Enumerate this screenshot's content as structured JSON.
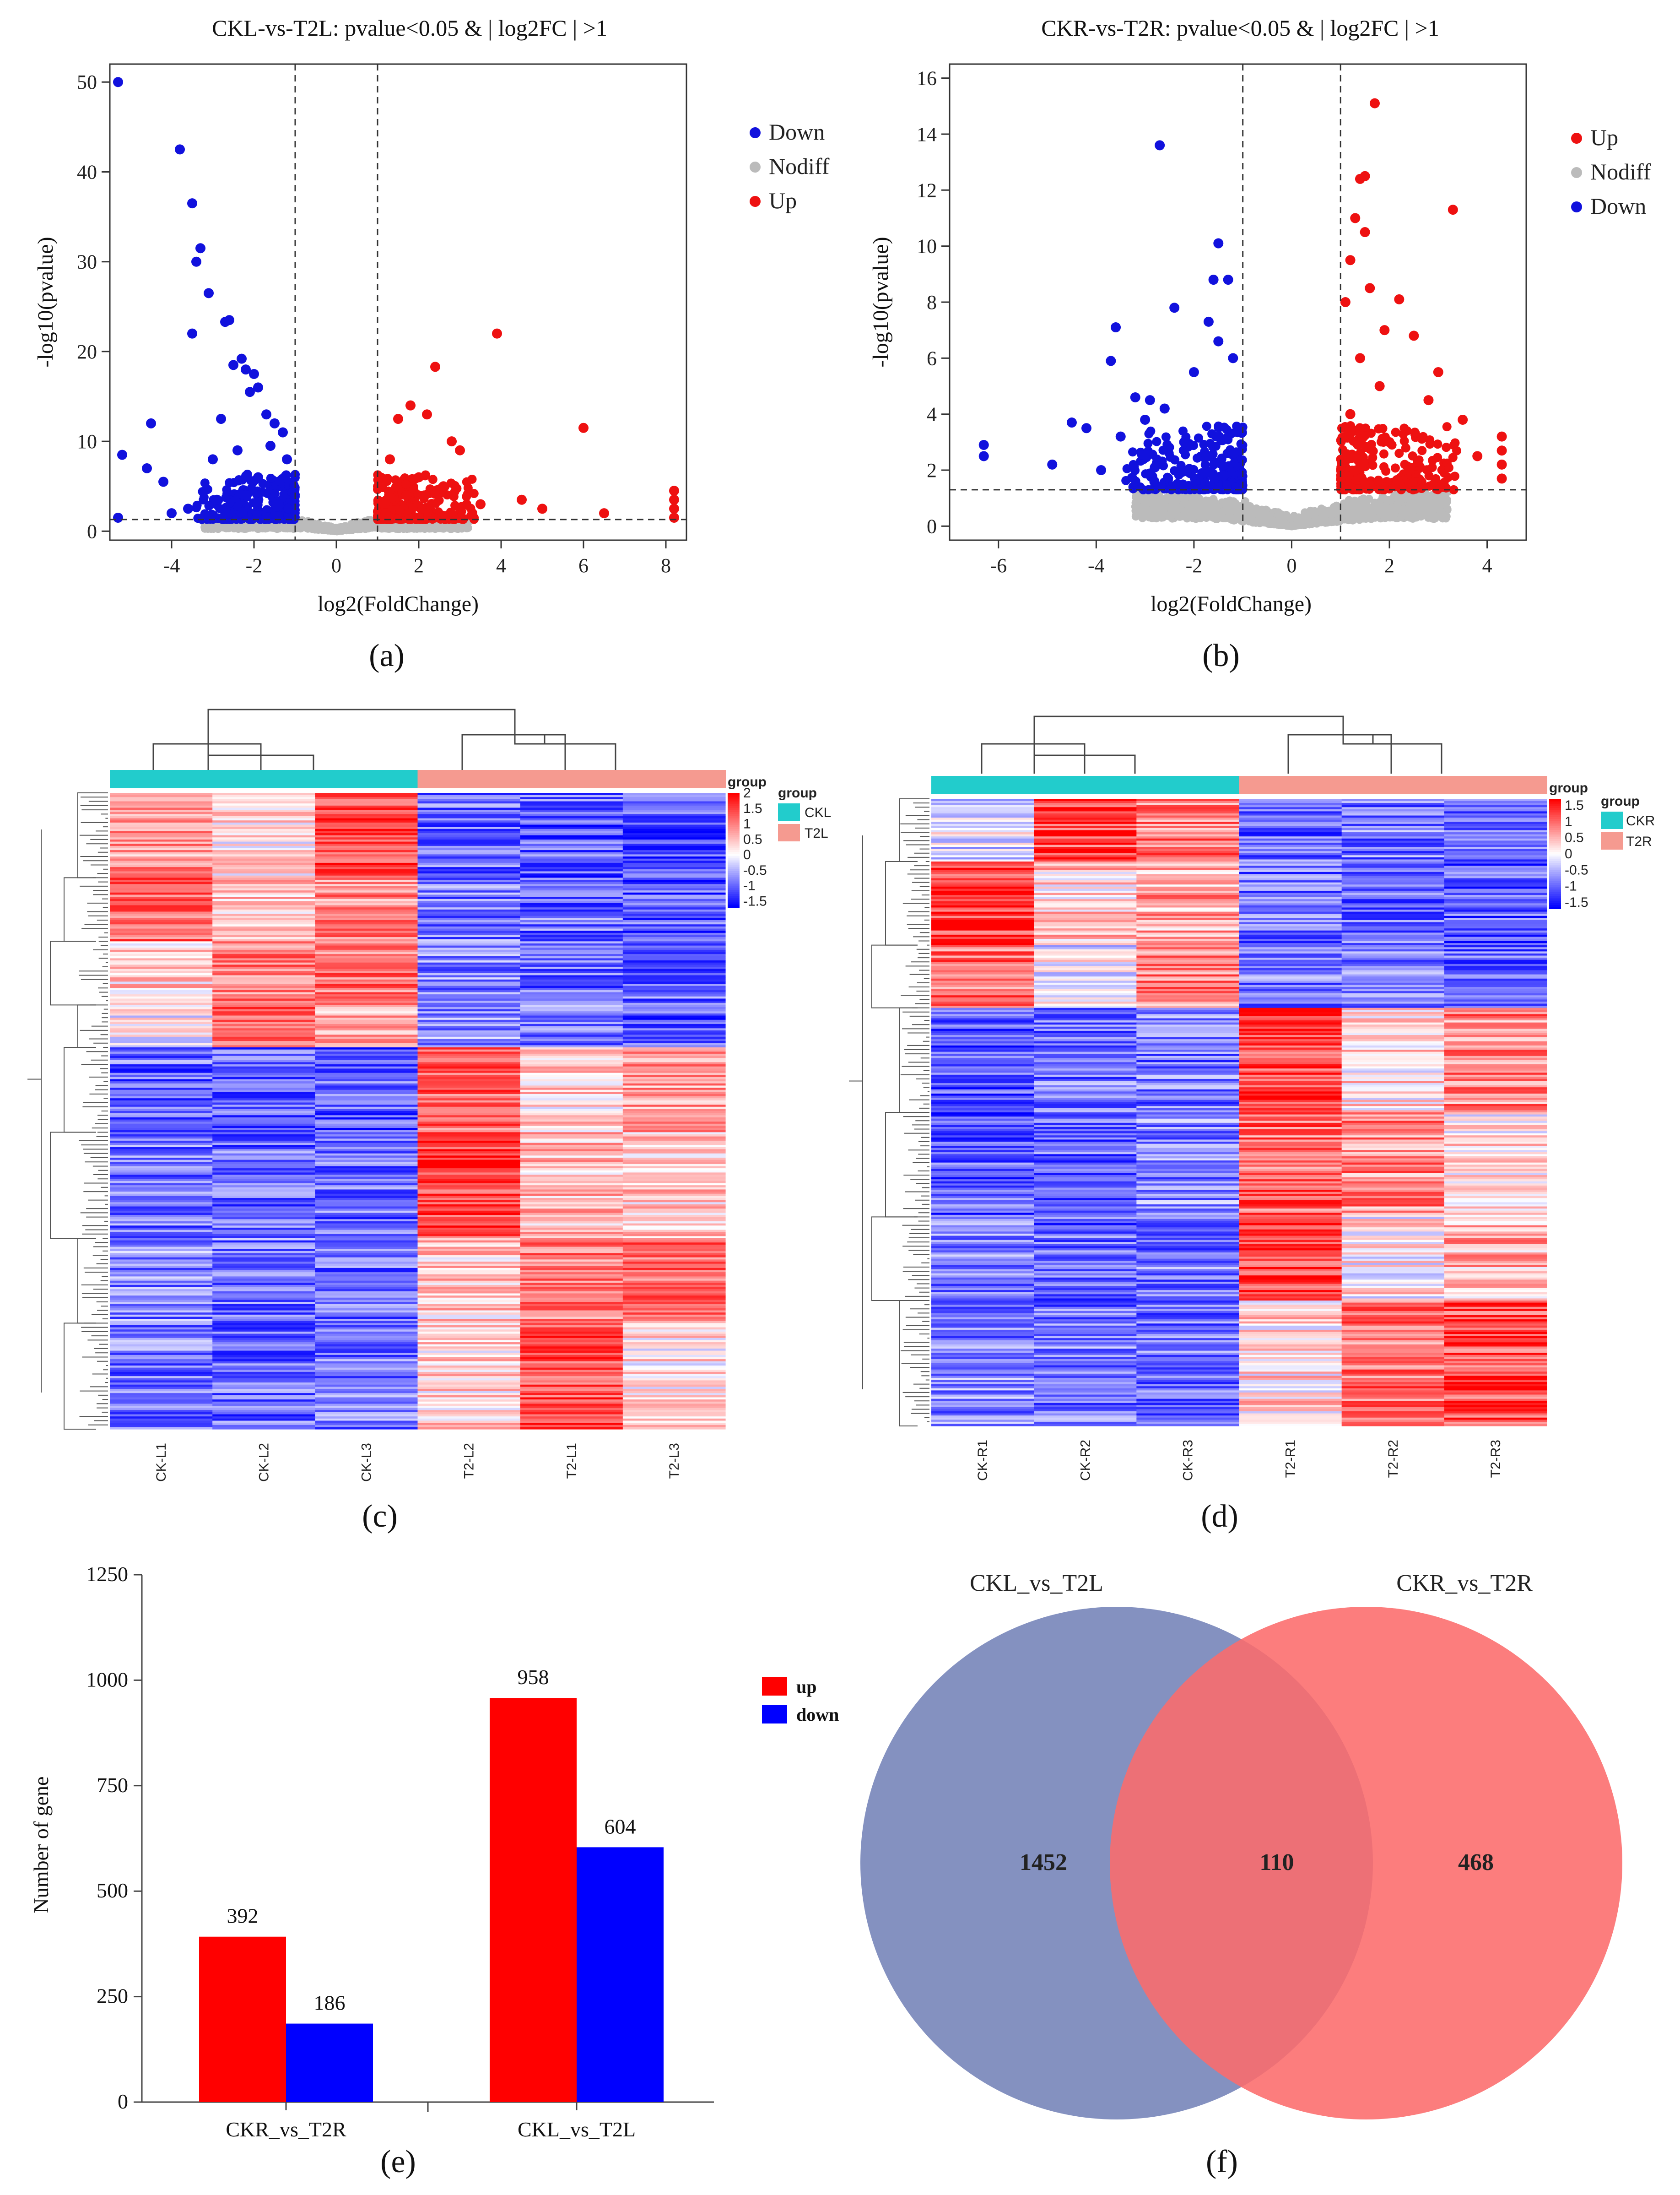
{
  "chart_data": [
    {
      "panel": "(a)",
      "type": "scatter",
      "title": "CKL-vs-T2L: pvalue<0.05 & | log2FC | >1",
      "xlabel": "log2(FoldChange)",
      "ylabel": "-log10(pvalue)",
      "xlim": [
        -5.5,
        8.5
      ],
      "ylim": [
        -1,
        52
      ],
      "xticks": [
        -4,
        -2,
        0,
        2,
        4,
        6,
        8
      ],
      "yticks": [
        0,
        10,
        20,
        30,
        40,
        50
      ],
      "thresholds": {
        "x": [
          -1,
          1
        ],
        "y": 1.3
      },
      "legend": [
        "Down",
        "Nodiff",
        "Up"
      ],
      "colors": {
        "Down": "#1111dd",
        "Nodiff": "#bbbbbb",
        "Up": "#ee1111"
      },
      "series": [
        {
          "name": "Down",
          "points": [
            [
              -5.3,
              50
            ],
            [
              -3.8,
              42.5
            ],
            [
              -3.5,
              36.5
            ],
            [
              -3.3,
              31.5
            ],
            [
              -3.4,
              30
            ],
            [
              -3.1,
              26.5
            ],
            [
              -2.6,
              23.5
            ],
            [
              -2.7,
              23.3
            ],
            [
              -3.5,
              22
            ],
            [
              -2.3,
              19.2
            ],
            [
              -2.5,
              18.5
            ],
            [
              -2.2,
              18
            ],
            [
              -2.0,
              17.5
            ],
            [
              -1.9,
              16
            ],
            [
              -2.1,
              15.5
            ],
            [
              -4.5,
              12
            ],
            [
              -2.8,
              12.5
            ],
            [
              -1.5,
              12
            ],
            [
              -1.7,
              13
            ],
            [
              -1.3,
              11
            ],
            [
              -5.2,
              8.5
            ],
            [
              -4.2,
              5.5
            ],
            [
              -4.6,
              7
            ],
            [
              -3.0,
              8
            ],
            [
              -2.4,
              9
            ],
            [
              -1.6,
              9.5
            ],
            [
              -1.2,
              8
            ],
            [
              -1.9,
              6
            ],
            [
              -2.2,
              4
            ],
            [
              -1.4,
              3
            ],
            [
              -3.6,
              2.5
            ],
            [
              -4.0,
              2
            ],
            [
              -5.3,
              1.5
            ],
            [
              -2.9,
              3.5
            ]
          ]
        },
        {
          "name": "Up",
          "points": [
            [
              3.9,
              22
            ],
            [
              2.4,
              18.3
            ],
            [
              1.8,
              14
            ],
            [
              2.2,
              13
            ],
            [
              1.5,
              12.5
            ],
            [
              2.8,
              10
            ],
            [
              6.0,
              11.5
            ],
            [
              3.0,
              9
            ],
            [
              1.3,
              8
            ],
            [
              2.0,
              6
            ],
            [
              1.7,
              4
            ],
            [
              4.5,
              3.5
            ],
            [
              5.0,
              2.5
            ],
            [
              3.5,
              3
            ],
            [
              8.2,
              4.5
            ],
            [
              8.2,
              3.5
            ],
            [
              8.2,
              2.5
            ],
            [
              8.2,
              1.5
            ],
            [
              6.5,
              2
            ],
            [
              1.2,
              2
            ],
            [
              2.6,
              5
            ]
          ]
        }
      ]
    },
    {
      "panel": "(b)",
      "type": "scatter",
      "title": "CKR-vs-T2R: pvalue<0.05 & | log2FC | >1",
      "xlabel": "log2(FoldChange)",
      "ylabel": "-log10(pvalue)",
      "xlim": [
        -7,
        4.8
      ],
      "ylim": [
        -0.5,
        16.5
      ],
      "xticks": [
        -6,
        -4,
        -2,
        0,
        2,
        4
      ],
      "yticks": [
        0,
        2,
        4,
        6,
        8,
        10,
        12,
        14,
        16
      ],
      "thresholds": {
        "x": [
          -1,
          1
        ],
        "y": 1.3
      },
      "legend": [
        "Up",
        "Nodiff",
        "Down"
      ],
      "colors": {
        "Down": "#1111dd",
        "Nodiff": "#bbbbbb",
        "Up": "#ee1111"
      },
      "series": [
        {
          "name": "Down",
          "points": [
            [
              -2.7,
              13.6
            ],
            [
              -1.5,
              10.1
            ],
            [
              -1.6,
              8.8
            ],
            [
              -1.3,
              8.8
            ],
            [
              -2.4,
              7.8
            ],
            [
              -3.6,
              7.1
            ],
            [
              -1.7,
              7.3
            ],
            [
              -1.5,
              6.6
            ],
            [
              -3.7,
              5.9
            ],
            [
              -1.2,
              6
            ],
            [
              -2.0,
              5.5
            ],
            [
              -3.2,
              4.6
            ],
            [
              -2.9,
              4.5
            ],
            [
              -2.6,
              4.2
            ],
            [
              -4.5,
              3.7
            ],
            [
              -4.2,
              3.5
            ],
            [
              -3.0,
              3.8
            ],
            [
              -3.5,
              3.2
            ],
            [
              -2.2,
              3
            ],
            [
              -1.7,
              2.5
            ],
            [
              -6.3,
              2.9
            ],
            [
              -6.3,
              2.5
            ],
            [
              -4.9,
              2.2
            ],
            [
              -3.9,
              2
            ],
            [
              -2.8,
              2.1
            ],
            [
              -1.4,
              1.8
            ],
            [
              -1.2,
              2.6
            ]
          ]
        },
        {
          "name": "Up",
          "points": [
            [
              1.7,
              15.1
            ],
            [
              1.4,
              12.4
            ],
            [
              1.5,
              12.5
            ],
            [
              3.3,
              11.3
            ],
            [
              1.3,
              11
            ],
            [
              1.5,
              10.5
            ],
            [
              1.2,
              9.5
            ],
            [
              1.6,
              8.5
            ],
            [
              1.1,
              8
            ],
            [
              2.2,
              8.1
            ],
            [
              1.9,
              7
            ],
            [
              2.5,
              6.8
            ],
            [
              1.4,
              6
            ],
            [
              3.0,
              5.5
            ],
            [
              1.8,
              5
            ],
            [
              2.8,
              4.5
            ],
            [
              1.2,
              4
            ],
            [
              3.5,
              3.8
            ],
            [
              4.3,
              3.2
            ],
            [
              4.3,
              2.7
            ],
            [
              4.3,
              2.2
            ],
            [
              4.3,
              1.7
            ],
            [
              2.0,
              3
            ],
            [
              1.3,
              2.5
            ],
            [
              3.8,
              2.5
            ],
            [
              2.4,
              2
            ]
          ]
        }
      ]
    },
    {
      "panel": "(c)",
      "type": "heatmap",
      "columns": [
        "CK-L1",
        "CK-L2",
        "CK-L3",
        "T2-L2",
        "T2-L1",
        "T2-L3"
      ],
      "groups": [
        "CKL",
        "CKL",
        "CKL",
        "T2L",
        "T2L",
        "T2L"
      ],
      "legend_title": "group",
      "group_legend": [
        "CKL",
        "T2L"
      ],
      "colorbar_title": "group",
      "colorbar_ticks": [
        2,
        1.5,
        1,
        0.5,
        0,
        -0.5,
        -1,
        -1.5
      ],
      "value_range": [
        -1.7,
        2
      ],
      "group_colors": {
        "CKL": "#22cccc",
        "T2L": "#f59a90"
      },
      "row_blocks": [
        {
          "rows": 40,
          "values": [
            0.8,
            0.2,
            1.5,
            -1.0,
            -1.1,
            -1.2
          ]
        },
        {
          "rows": 30,
          "values": [
            1.2,
            0.5,
            0.9,
            -0.9,
            -1.0,
            -1.1
          ]
        },
        {
          "rows": 30,
          "values": [
            0.4,
            1.0,
            1.1,
            -0.8,
            -1.0,
            -1.0
          ]
        },
        {
          "rows": 20,
          "values": [
            0.0,
            1.3,
            0.6,
            -0.7,
            -0.9,
            -1.1
          ]
        },
        {
          "rows": 40,
          "values": [
            -1.0,
            -1.1,
            -1.1,
            1.2,
            0.3,
            0.8
          ]
        },
        {
          "rows": 50,
          "values": [
            -0.9,
            -1.0,
            -1.0,
            1.5,
            0.5,
            0.4
          ]
        },
        {
          "rows": 40,
          "values": [
            -0.8,
            -0.9,
            -1.0,
            0.4,
            1.0,
            1.2
          ]
        },
        {
          "rows": 50,
          "values": [
            -0.9,
            -1.0,
            -0.9,
            0.3,
            1.4,
            0.2
          ]
        }
      ]
    },
    {
      "panel": "(d)",
      "type": "heatmap",
      "columns": [
        "CK-R1",
        "CK-R2",
        "CK-R3",
        "T2-R1",
        "T2-R2",
        "T2-R3"
      ],
      "groups": [
        "CKR",
        "CKR",
        "CKR",
        "T2R",
        "T2R",
        "T2R"
      ],
      "legend_title": "group",
      "group_legend": [
        "CKR",
        "T2R"
      ],
      "colorbar_title": "group",
      "colorbar_ticks": [
        1.5,
        1,
        0.5,
        0,
        -0.5,
        -1,
        -1.5
      ],
      "value_range": [
        -1.7,
        1.7
      ],
      "group_colors": {
        "CKR": "#22cccc",
        "T2R": "#f59a90"
      },
      "row_blocks": [
        {
          "rows": 30,
          "values": [
            -0.2,
            1.2,
            0.9,
            -1.0,
            -0.9,
            -1.0
          ]
        },
        {
          "rows": 40,
          "values": [
            1.3,
            0.3,
            0.6,
            -1.0,
            -1.0,
            -1.1
          ]
        },
        {
          "rows": 30,
          "values": [
            1.0,
            -0.1,
            0.8,
            -0.9,
            -0.8,
            -1.0
          ]
        },
        {
          "rows": 50,
          "values": [
            -1.2,
            -0.9,
            -0.9,
            1.2,
            0.2,
            0.8
          ]
        },
        {
          "rows": 50,
          "values": [
            -1.1,
            -1.0,
            -0.8,
            1.0,
            0.8,
            0.1
          ]
        },
        {
          "rows": 40,
          "values": [
            -0.9,
            -1.0,
            -0.9,
            1.3,
            0.1,
            0.5
          ]
        },
        {
          "rows": 60,
          "values": [
            -0.8,
            -0.9,
            -0.9,
            0.2,
            0.9,
            1.2
          ]
        }
      ]
    },
    {
      "panel": "(e)",
      "type": "bar",
      "categories": [
        "CKR_vs_T2R",
        "CKL_vs_T2L"
      ],
      "series": [
        {
          "name": "up",
          "values": [
            392,
            958
          ],
          "color": "#ff0000"
        },
        {
          "name": "down",
          "values": [
            186,
            604
          ],
          "color": "#0000ff"
        }
      ],
      "ylabel": "Number of gene",
      "ylim": [
        0,
        1250
      ],
      "yticks": [
        0,
        250,
        500,
        750,
        1000,
        1250
      ]
    },
    {
      "panel": "(f)",
      "type": "venn",
      "sets": [
        {
          "name": "CKL_vs_T2L",
          "only": 1452,
          "color": "#8491c0"
        },
        {
          "name": "CKR_vs_T2R",
          "only": 468,
          "color": "#fc6b6b"
        }
      ],
      "intersection": 110
    }
  ],
  "panel_labels": [
    "(a)",
    "(b)",
    "(c)",
    "(d)",
    "(e)",
    "(f)"
  ]
}
